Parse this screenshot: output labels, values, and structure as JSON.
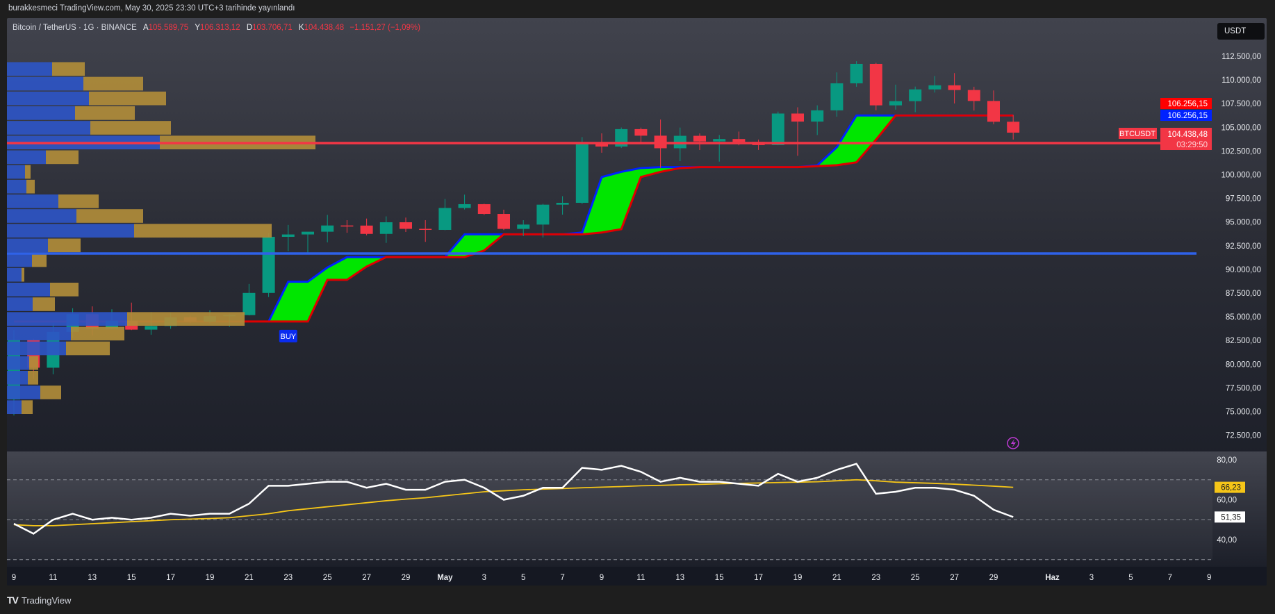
{
  "header": {
    "published": "burakkesmeci TradingView.com, May 30, 2025 23:30 UTC+3 tarihinde yayınlandı"
  },
  "legend": {
    "symbol": "Bitcoin / TetherUS · 1G · BINANCE",
    "open_label": "A",
    "open": "105.589,75",
    "high_label": "Y",
    "high": "106.313,12",
    "low_label": "D",
    "low": "103.706,71",
    "close_label": "K",
    "close": "104.438,48",
    "change": "−1.151,27 (−1,09%)"
  },
  "currency_button": "USDT",
  "price_axis": {
    "ticks": [
      "112.500,00",
      "110.000,00",
      "107.500,00",
      "105.000,00",
      "102.500,00",
      "100.000,00",
      "97.500,00",
      "95.000,00",
      "92.500,00",
      "90.000,00",
      "87.500,00",
      "85.000,00",
      "82.500,00",
      "80.000,00",
      "77.500,00",
      "75.000,00",
      "72.500,00"
    ],
    "tick_values": [
      112500,
      110000,
      107500,
      105000,
      102500,
      100000,
      97500,
      95000,
      92500,
      90000,
      87500,
      85000,
      82500,
      80000,
      77500,
      75000,
      72500
    ],
    "badges": {
      "supertrend_red": "106.256,15",
      "supertrend_blue": "106.256,15",
      "symbol_tag": "BTCUSDT",
      "last_price": "104.438,48",
      "countdown": "03:29:50"
    }
  },
  "rsi_axis": {
    "ticks": [
      "80,00",
      "60,00",
      "40,00"
    ],
    "tick_values": [
      80,
      60,
      40
    ],
    "ma_badge": "66,23",
    "rsi_badge": "51,35"
  },
  "date_axis": {
    "labels": [
      "9",
      "11",
      "13",
      "15",
      "17",
      "19",
      "21",
      "23",
      "25",
      "27",
      "29",
      "May",
      "3",
      "5",
      "7",
      "9",
      "11",
      "13",
      "15",
      "17",
      "19",
      "21",
      "23",
      "25",
      "27",
      "29",
      "Haz",
      "3",
      "5",
      "7",
      "9"
    ],
    "day_index": [
      0,
      2,
      4,
      6,
      8,
      10,
      12,
      14,
      16,
      18,
      20,
      22,
      24,
      26,
      28,
      30,
      32,
      34,
      36,
      38,
      40,
      42,
      44,
      46,
      48,
      50,
      53,
      55,
      57,
      59,
      61
    ]
  },
  "signal_label": "BUY",
  "footer": {
    "brand": "TradingView"
  },
  "colors": {
    "up": "#089981",
    "down": "#f23645",
    "cloud": "#00e600",
    "upper": "#0022ff",
    "lower": "#e00000",
    "level_red": "#f23645",
    "level_blue": "#2f62e8",
    "rsi": "#ffffff",
    "rsi_ma": "#f5c518",
    "vp_up": "#2e55c4",
    "vp_down": "#b08c3a"
  },
  "chart_data": {
    "type": "candlestick",
    "title": "Bitcoin / TetherUS · 1G · BINANCE",
    "ylim": [
      72500,
      112500
    ],
    "candles": [
      [
        "Apr 9",
        76270,
        83588,
        74589,
        82573
      ],
      [
        "Apr 10",
        82573,
        82700,
        78456,
        79626
      ],
      [
        "Apr 11",
        79626,
        84300,
        78936,
        83404
      ],
      [
        "Apr 12",
        83404,
        85905,
        82792,
        85276
      ],
      [
        "Apr 13",
        85276,
        86100,
        83034,
        83760
      ],
      [
        "Apr 14",
        83760,
        85799,
        83678,
        84591
      ],
      [
        "Apr 15",
        84591,
        86496,
        83600,
        83643
      ],
      [
        "Apr 16",
        83643,
        85500,
        83111,
        84030
      ],
      [
        "Apr 17",
        84030,
        85470,
        83736,
        84947
      ],
      [
        "Apr 18",
        84947,
        85132,
        84303,
        84474
      ],
      [
        "Apr 19",
        84474,
        85681,
        84300,
        85077
      ],
      [
        "Apr 20",
        85077,
        85320,
        83949,
        85179
      ],
      [
        "Apr 21",
        85179,
        88465,
        85144,
        87516
      ],
      [
        "Apr 22",
        87516,
        93817,
        87084,
        93442
      ],
      [
        "Apr 23",
        93442,
        94696,
        91935,
        93691
      ],
      [
        "Apr 24",
        93691,
        93697,
        91665,
        93980
      ],
      [
        "Apr 25",
        93980,
        95758,
        92855,
        94638
      ],
      [
        "Apr 26",
        94638,
        95199,
        93870,
        94628
      ],
      [
        "Apr 27",
        94628,
        95369,
        93602,
        93750
      ],
      [
        "Apr 28",
        93750,
        95600,
        92800,
        94979
      ],
      [
        "Apr 29",
        94979,
        95470,
        93949,
        94284
      ],
      [
        "Apr 30",
        94284,
        95200,
        92910,
        94172
      ],
      [
        "May 1",
        94172,
        97437,
        94135,
        96489
      ],
      [
        "May 2",
        96489,
        97895,
        96327,
        96887
      ],
      [
        "May 3",
        96887,
        96935,
        95753,
        95856
      ],
      [
        "May 4",
        95856,
        96304,
        94151,
        94277
      ],
      [
        "May 5",
        94277,
        95199,
        93514,
        94733
      ],
      [
        "May 6",
        94733,
        96920,
        93377,
        96834
      ],
      [
        "May 7",
        96834,
        97732,
        95784,
        97032
      ],
      [
        "May 8",
        97032,
        103969,
        96913,
        103241
      ],
      [
        "May 9",
        103241,
        104361,
        102316,
        102971
      ],
      [
        "May 10",
        102971,
        104984,
        102818,
        104810
      ],
      [
        "May 11",
        104810,
        104972,
        103346,
        104118
      ],
      [
        "May 12",
        104118,
        105819,
        100718,
        102791
      ],
      [
        "May 13",
        102791,
        104976,
        101429,
        104103
      ],
      [
        "May 14",
        104103,
        104356,
        102602,
        103507
      ],
      [
        "May 15",
        103507,
        104192,
        101383,
        103763
      ],
      [
        "May 16",
        103763,
        104550,
        103100,
        103463
      ],
      [
        "May 17",
        103463,
        103709,
        102612,
        103126
      ],
      [
        "May 18",
        103126,
        106660,
        103105,
        106454
      ],
      [
        "May 19",
        106454,
        107108,
        102000,
        105606
      ],
      [
        "May 20",
        105606,
        107320,
        104184,
        106791
      ],
      [
        "May 21",
        106791,
        110797,
        106127,
        109643
      ],
      [
        "May 22",
        109643,
        111980,
        109285,
        111696
      ],
      [
        "May 23",
        111696,
        111800,
        106800,
        107318
      ],
      [
        "May 24",
        107318,
        109506,
        106875,
        107761
      ],
      [
        "May 25",
        107761,
        109299,
        106600,
        109004
      ],
      [
        "May 26",
        109004,
        110422,
        108670,
        109434
      ],
      [
        "May 27",
        109434,
        110718,
        107516,
        108938
      ],
      [
        "May 28",
        108938,
        109284,
        106769,
        107781
      ],
      [
        "May 29",
        107781,
        108891,
        105322,
        105589
      ],
      [
        "May 30",
        105589,
        106313,
        103706,
        104438
      ]
    ],
    "cloud_upper": [
      null,
      null,
      null,
      null,
      null,
      null,
      null,
      null,
      null,
      null,
      null,
      null,
      null,
      84500,
      88700,
      88700,
      90200,
      91300,
      91300,
      91300,
      91300,
      91300,
      91300,
      93700,
      93700,
      93700,
      93700,
      93700,
      93700,
      93900,
      99750,
      100300,
      100700,
      100800,
      100800,
      100800,
      100800,
      100800,
      100800,
      100800,
      100800,
      100990,
      102900,
      106250,
      106250,
      106250,
      106250,
      106250,
      106250,
      106250,
      106250,
      106250
    ],
    "cloud_lower": [
      84500,
      84500,
      84500,
      84500,
      84500,
      84500,
      84500,
      84500,
      84500,
      84500,
      84500,
      84500,
      84500,
      84500,
      84500,
      84500,
      88900,
      88900,
      90300,
      91300,
      91300,
      91300,
      91300,
      91300,
      92000,
      93700,
      93700,
      93700,
      93700,
      93700,
      93900,
      94250,
      99750,
      100300,
      100700,
      100800,
      100800,
      100800,
      100800,
      100800,
      100800,
      100900,
      101000,
      101300,
      103700,
      106250,
      106250,
      106250,
      106250,
      106250,
      106250,
      106250
    ],
    "levels": [
      {
        "name": "resistance",
        "price": 103336,
        "color": "red"
      },
      {
        "name": "support",
        "price": 91680,
        "color": "blue"
      }
    ],
    "buy_signal_index": 14,
    "volume_profile": {
      "range": [
        74670,
        111914
      ],
      "up": [
        65,
        110,
        118,
        98,
        120,
        220,
        56,
        26,
        28,
        74,
        100,
        183,
        59,
        36,
        21,
        62,
        37,
        173,
        92,
        85,
        32,
        30,
        48,
        21
      ],
      "down": [
        47,
        86,
        111,
        86,
        116,
        224,
        47,
        8,
        12,
        58,
        96,
        198,
        47,
        21,
        4,
        41,
        32,
        169,
        77,
        63,
        13,
        15,
        30,
        16
      ]
    },
    "rsi": [
      48,
      43,
      50,
      53,
      50,
      51,
      50,
      51,
      53,
      52,
      53,
      53,
      58,
      67,
      67,
      68,
      69,
      69,
      66,
      68,
      65,
      65,
      69,
      70,
      66,
      60,
      62,
      66,
      66,
      76,
      75,
      77,
      74,
      69,
      71,
      69,
      69,
      68,
      67,
      73,
      69,
      71,
      75,
      78,
      63,
      64,
      66,
      66,
      65,
      62,
      55,
      51.35
    ],
    "rsi_ma": [
      47.5,
      47,
      47,
      47.5,
      48,
      48.5,
      49,
      49.5,
      50,
      50.3,
      50.6,
      51,
      52,
      53,
      54.5,
      55.5,
      56.5,
      57.5,
      58.5,
      59.5,
      60.3,
      61,
      62,
      63,
      64,
      64.5,
      65,
      65.3,
      65.6,
      66,
      66.3,
      66.6,
      67,
      67.2,
      67.5,
      67.7,
      68,
      68.2,
      68.4,
      68.6,
      68.8,
      69,
      69.5,
      70,
      69.5,
      68.8,
      68.5,
      68.2,
      67.8,
      67.3,
      66.8,
      66.23
    ],
    "rsi_ylim": [
      30,
      85
    ],
    "rsi_bands": [
      70,
      50,
      30
    ]
  }
}
